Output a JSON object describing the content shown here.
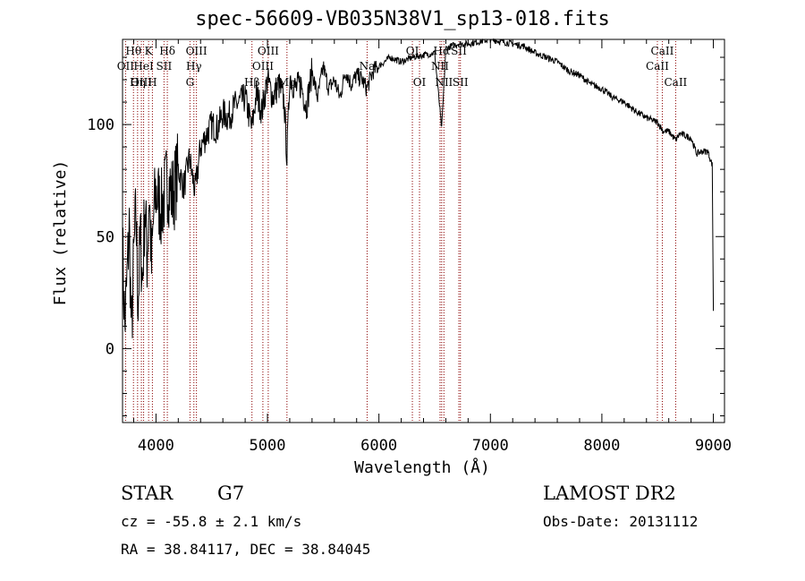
{
  "chart_data": {
    "type": "line",
    "title": "spec-56609-VB035N38V1_sp13-018.fits",
    "xlabel": "Wavelength (Å)",
    "ylabel": "Flux (relative)",
    "xlim": [
      3700,
      9100
    ],
    "ylim": [
      -33,
      138
    ],
    "xticks": [
      4000,
      5000,
      6000,
      7000,
      8000,
      9000
    ],
    "yticks": [
      0,
      50,
      100
    ],
    "series": [
      {
        "x": [
          3700,
          3720,
          3740,
          3760,
          3780,
          3800,
          3820,
          3840,
          3860,
          3880,
          3900,
          3920,
          3940,
          3960,
          3980,
          4000,
          4050,
          4100,
          4150,
          4200,
          4250,
          4300,
          4350,
          4400,
          4450,
          4500,
          4550,
          4600,
          4650,
          4700,
          4750,
          4800,
          4860,
          4900,
          4950,
          5000,
          5050,
          5100,
          5150,
          5175,
          5200,
          5250,
          5300,
          5350,
          5400,
          5450,
          5500,
          5550,
          5600,
          5650,
          5700,
          5750,
          5800,
          5850,
          5890,
          5950,
          6000,
          6100,
          6200,
          6300,
          6400,
          6500,
          6563,
          6600,
          6700,
          6800,
          6900,
          7000,
          7100,
          7200,
          7300,
          7400,
          7500,
          7600,
          7700,
          7800,
          7900,
          8000,
          8100,
          8200,
          8300,
          8400,
          8500,
          8550,
          8600,
          8662,
          8700,
          8800,
          8850,
          8900,
          8950,
          8990,
          9000
        ],
        "y": [
          45,
          10,
          30,
          55,
          5,
          40,
          60,
          20,
          50,
          30,
          65,
          40,
          70,
          35,
          60,
          70,
          62,
          75,
          68,
          80,
          72,
          85,
          70,
          90,
          95,
          100,
          98,
          105,
          103,
          108,
          110,
          112,
          98,
          114,
          106,
          120,
          112,
          118,
          110,
          85,
          122,
          116,
          118,
          108,
          124,
          112,
          126,
          116,
          120,
          112,
          124,
          118,
          122,
          120,
          116,
          124,
          126,
          130,
          128,
          130,
          131,
          132,
          98,
          134,
          136,
          136,
          137,
          138,
          137,
          136,
          135,
          132,
          130,
          128,
          124,
          122,
          118,
          116,
          112,
          110,
          106,
          103,
          101,
          97,
          97,
          93,
          96,
          94,
          87,
          88,
          88,
          82,
          20
        ]
      }
    ],
    "line_markers": [
      {
        "label": "Hθ",
        "wavelength": 3798,
        "row": 1
      },
      {
        "label": "OII",
        "wavelength": 3727,
        "row": 2
      },
      {
        "label": "OIII",
        "wavelength": 3869,
        "row": 3
      },
      {
        "label": "Hη",
        "wavelength": 3835,
        "row": 3
      },
      {
        "label": "HeI",
        "wavelength": 3889,
        "row": 2
      },
      {
        "label": "K",
        "wavelength": 3934,
        "row": 1
      },
      {
        "label": "H",
        "wavelength": 3968,
        "row": 3
      },
      {
        "label": "SII",
        "wavelength": 4072,
        "row": 2
      },
      {
        "label": "Hδ",
        "wavelength": 4102,
        "row": 1
      },
      {
        "label": "OIII",
        "wavelength": 4363,
        "row": 1
      },
      {
        "label": "Hγ",
        "wavelength": 4340,
        "row": 2
      },
      {
        "label": "G",
        "wavelength": 4305,
        "row": 3
      },
      {
        "label": "Hβ",
        "wavelength": 4861,
        "row": 3
      },
      {
        "label": "OIII",
        "wavelength": 5007,
        "row": 1
      },
      {
        "label": "OIII",
        "wavelength": 4959,
        "row": 2
      },
      {
        "label": "Mg",
        "wavelength": 5175,
        "row": 3
      },
      {
        "label": "Na",
        "wavelength": 5894,
        "row": 2
      },
      {
        "label": "OI",
        "wavelength": 6300,
        "row": 1
      },
      {
        "label": "OI",
        "wavelength": 6364,
        "row": 3
      },
      {
        "label": "Hα",
        "wavelength": 6563,
        "row": 1
      },
      {
        "label": "NII",
        "wavelength": 6548,
        "row": 2
      },
      {
        "label": "NII",
        "wavelength": 6583,
        "row": 3
      },
      {
        "label": "SII",
        "wavelength": 6717,
        "row": 1
      },
      {
        "label": "SII",
        "wavelength": 6731,
        "row": 3
      },
      {
        "label": "CaII",
        "wavelength": 8542,
        "row": 1
      },
      {
        "label": "CaII",
        "wavelength": 8498,
        "row": 2
      },
      {
        "label": "CaII",
        "wavelength": 8662,
        "row": 3
      }
    ],
    "marker_color": "#8b0000"
  },
  "info": {
    "class": "STAR",
    "subclass": "G7",
    "cz": "cz = -55.8 ± 2.1 km/s",
    "coords": "RA =  38.84117, DEC =  38.84045",
    "survey": "LAMOST DR2",
    "obs_date": "Obs-Date: 20131112"
  }
}
